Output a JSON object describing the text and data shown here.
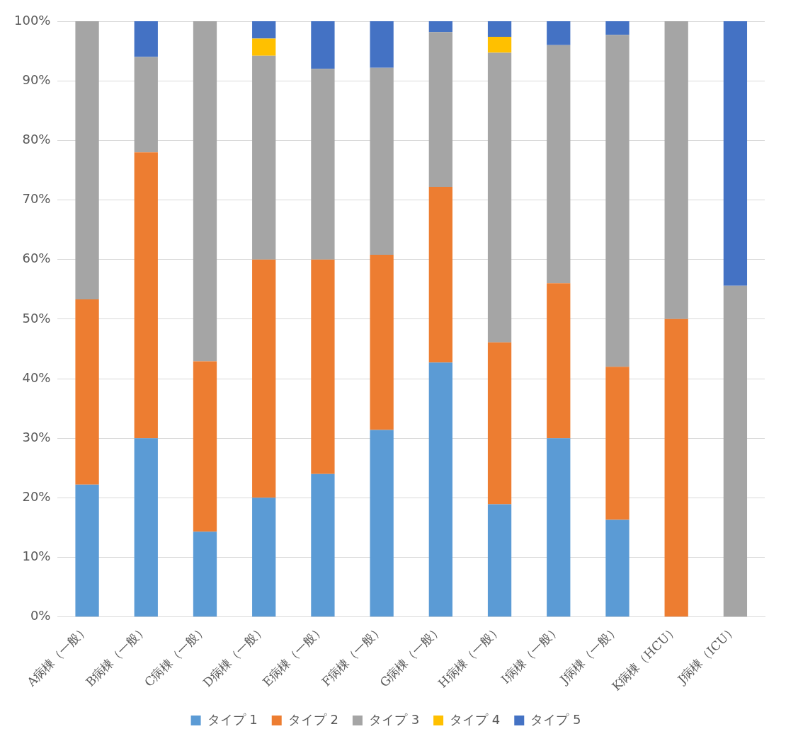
{
  "chart_data": {
    "type": "bar",
    "stacked": true,
    "categories": [
      "A病棟（一般）",
      "B病棟（一般）",
      "C病棟（一般）",
      "D病棟（一般）",
      "E病棟（一般）",
      "F病棟（一般）",
      "G病棟（一般）",
      "H病棟（一般）",
      "I病棟（一般）",
      "J病棟（一般）",
      "K病棟（HCU）",
      "J病棟（ICU）"
    ],
    "series": [
      {
        "name": "タイプ 1",
        "color": "#5b9bd5",
        "values": [
          22.2,
          30,
          14.3,
          20,
          24,
          31.4,
          42.7,
          18.9,
          30,
          16.3,
          0,
          0
        ]
      },
      {
        "name": "タイプ 2",
        "color": "#ed7d31",
        "values": [
          31.1,
          48,
          28.6,
          40,
          36,
          29.4,
          29.5,
          27.2,
          26,
          25.7,
          50,
          0
        ]
      },
      {
        "name": "タイプ 3",
        "color": "#a5a5a5",
        "values": [
          46.7,
          16,
          57.1,
          34.2,
          32,
          31.4,
          26,
          48.6,
          40,
          55.7,
          50,
          55.6
        ]
      },
      {
        "name": "タイプ 4",
        "color": "#ffc000",
        "values": [
          0,
          0,
          0,
          2.9,
          0,
          0,
          0,
          2.7,
          0,
          0,
          0,
          0
        ]
      },
      {
        "name": "タイプ 5",
        "color": "#4472c4",
        "values": [
          0,
          6,
          0,
          2.9,
          8,
          7.8,
          1.8,
          2.6,
          4,
          2.3,
          0,
          44.4
        ]
      }
    ],
    "ylim": [
      0,
      100
    ],
    "yticks": [
      {
        "value": 0,
        "label": "0%"
      },
      {
        "value": 10,
        "label": "10%"
      },
      {
        "value": 20,
        "label": "20%"
      },
      {
        "value": 30,
        "label": "30%"
      },
      {
        "value": 40,
        "label": "40%"
      },
      {
        "value": 50,
        "label": "50%"
      },
      {
        "value": 60,
        "label": "60%"
      },
      {
        "value": 70,
        "label": "70%"
      },
      {
        "value": 80,
        "label": "80%"
      },
      {
        "value": 90,
        "label": "90%"
      },
      {
        "value": 100,
        "label": "100%"
      }
    ],
    "grid": "y",
    "legend": "bottom"
  }
}
